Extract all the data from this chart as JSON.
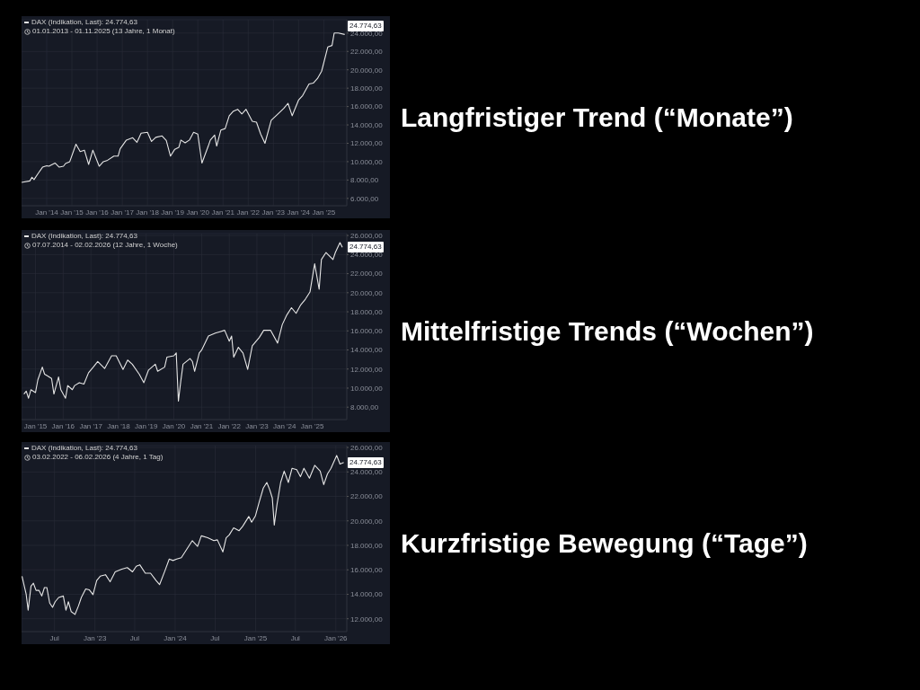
{
  "chart_data": [
    {
      "type": "line",
      "subtitle": "01.01.2013 - 01.11.2025 (13 Jahre, 1 Monat)",
      "legend": "top left",
      "grid": true,
      "x": [
        "2013-01",
        "2013-05",
        "2013-06",
        "2013-07",
        "2013-09",
        "2013-11",
        "2014-01",
        "2014-02",
        "2014-05",
        "2014-07",
        "2014-09",
        "2014-10",
        "2014-12",
        "2015-03",
        "2015-05",
        "2015-07",
        "2015-09",
        "2015-11",
        "2016-02",
        "2016-04",
        "2016-06",
        "2016-09",
        "2016-11",
        "2016-12",
        "2017-03",
        "2017-06",
        "2017-08",
        "2017-10",
        "2018-01",
        "2018-03",
        "2018-05",
        "2018-08",
        "2018-10",
        "2018-12",
        "2019-02",
        "2019-04",
        "2019-05",
        "2019-07",
        "2019-09",
        "2019-11",
        "2020-01",
        "2020-03",
        "2020-06",
        "2020-07",
        "2020-09",
        "2020-10",
        "2020-12",
        "2021-02",
        "2021-04",
        "2021-06",
        "2021-08",
        "2021-10",
        "2021-12",
        "2022-03",
        "2022-05",
        "2022-07",
        "2022-09",
        "2022-12",
        "2023-03",
        "2023-06",
        "2023-08",
        "2023-10",
        "2024-01",
        "2024-03",
        "2024-06",
        "2024-08",
        "2024-10",
        "2024-12",
        "2025-03",
        "2025-05",
        "2025-06",
        "2025-08",
        "2025-11"
      ],
      "series": [
        {
          "name": "DAX (Indikation, Last): 24.774,63",
          "color": "#e6e6e6",
          "values": [
            7750,
            7900,
            8300,
            8050,
            8750,
            9400,
            9550,
            9500,
            9850,
            9400,
            9500,
            9800,
            10000,
            11900,
            11100,
            11250,
            9700,
            11250,
            9500,
            10000,
            10150,
            10600,
            10600,
            11400,
            12350,
            12600,
            12100,
            13100,
            13200,
            12200,
            12650,
            12800,
            12300,
            10600,
            11350,
            11550,
            12350,
            12050,
            12350,
            13200,
            13000,
            9850,
            11700,
            12350,
            12900,
            11700,
            13450,
            13600,
            15000,
            15500,
            15700,
            15200,
            15700,
            14400,
            14300,
            13000,
            12000,
            14500,
            15150,
            15800,
            16350,
            15000,
            16700,
            17200,
            18450,
            18550,
            19050,
            19850,
            22500,
            22650,
            24000,
            24000,
            23850
          ]
        }
      ],
      "xlim": [
        "2013-01-01",
        "2025-12-01"
      ],
      "xticks": [
        {
          "value": "2014-01",
          "label": "Jan '14"
        },
        {
          "value": "2015-01",
          "label": "Jan '15"
        },
        {
          "value": "2016-01",
          "label": "Jan '16"
        },
        {
          "value": "2017-01",
          "label": "Jan '17"
        },
        {
          "value": "2018-01",
          "label": "Jan '18"
        },
        {
          "value": "2019-01",
          "label": "Jan '19"
        },
        {
          "value": "2020-01",
          "label": "Jan '20"
        },
        {
          "value": "2021-01",
          "label": "Jan '21"
        },
        {
          "value": "2022-01",
          "label": "Jan '22"
        },
        {
          "value": "2023-01",
          "label": "Jan '23"
        },
        {
          "value": "2024-01",
          "label": "Jan '24"
        },
        {
          "value": "2025-01",
          "label": "Jan '25"
        }
      ],
      "ylim": [
        5200,
        25450
      ],
      "yticks": [
        {
          "value": 6000,
          "label": "6.000,00"
        },
        {
          "value": 8000,
          "label": "8.000,00"
        },
        {
          "value": 10000,
          "label": "10.000,00"
        },
        {
          "value": 12000,
          "label": "12.000,00"
        },
        {
          "value": 14000,
          "label": "14.000,00"
        },
        {
          "value": 16000,
          "label": "16.000,00"
        },
        {
          "value": 18000,
          "label": "18.000,00"
        },
        {
          "value": 20000,
          "label": "20.000,00"
        },
        {
          "value": 22000,
          "label": "22.000,00"
        },
        {
          "value": 24000,
          "label": "24.000,00"
        }
      ],
      "annotations": [
        {
          "text": "24.774,63",
          "y": 24774.63
        }
      ]
    },
    {
      "type": "line",
      "subtitle": "07.07.2014 - 02.02.2026 (12 Jahre, 1 Woche)",
      "legend": "top left",
      "grid": true,
      "x": [
        "2014-08",
        "2014-09",
        "2014-10",
        "2014-11",
        "2015-01",
        "2015-02",
        "2015-04",
        "2015-05",
        "2015-06",
        "2015-08",
        "2015-09",
        "2015-11",
        "2015-12",
        "2016-02",
        "2016-03",
        "2016-05",
        "2016-06",
        "2016-08",
        "2016-10",
        "2016-12",
        "2017-02",
        "2017-04",
        "2017-07",
        "2017-10",
        "2017-12",
        "2018-03",
        "2018-05",
        "2018-07",
        "2018-10",
        "2018-12",
        "2019-02",
        "2019-05",
        "2019-06",
        "2019-09",
        "2019-10",
        "2020-01",
        "2020-02",
        "2020-03",
        "2020-04",
        "2020-05",
        "2020-08",
        "2020-09",
        "2020-10",
        "2020-12",
        "2021-01",
        "2021-04",
        "2021-07",
        "2021-09",
        "2021-11",
        "2022-01",
        "2022-02",
        "2022-03",
        "2022-05",
        "2022-07",
        "2022-09",
        "2022-11",
        "2023-02",
        "2023-04",
        "2023-07",
        "2023-10",
        "2023-12",
        "2024-02",
        "2024-04",
        "2024-06",
        "2024-08",
        "2024-10",
        "2024-12",
        "2025-02",
        "2025-04",
        "2025-05",
        "2025-07",
        "2025-10",
        "2025-11",
        "2026-01",
        "2026-02"
      ],
      "series": [
        {
          "name": "DAX (Indikation, Last): 24.774,63",
          "color": "#e6e6e6",
          "values": [
            9380,
            9680,
            8940,
            9830,
            9530,
            10870,
            12200,
            11460,
            11310,
            11010,
            9380,
            11160,
            9830,
            8940,
            10270,
            9830,
            10270,
            10570,
            10420,
            11610,
            12200,
            12790,
            12050,
            13390,
            13390,
            11960,
            12940,
            12500,
            11460,
            10570,
            11900,
            12500,
            11760,
            12200,
            13240,
            13390,
            13690,
            8640,
            10720,
            12500,
            13090,
            12800,
            11760,
            13690,
            13980,
            15460,
            15760,
            15910,
            16060,
            14920,
            15460,
            13240,
            14280,
            13690,
            11960,
            14430,
            15310,
            16060,
            16060,
            14720,
            16650,
            17690,
            18430,
            17840,
            18730,
            19320,
            20070,
            23030,
            20360,
            23480,
            24220,
            23480,
            24220,
            25260,
            24775
          ]
        }
      ],
      "xlim": [
        "2014-07-01",
        "2026-04-01"
      ],
      "xticks": [
        {
          "value": "2015-01",
          "label": "Jan '15"
        },
        {
          "value": "2016-01",
          "label": "Jan '16"
        },
        {
          "value": "2017-01",
          "label": "Jan '17"
        },
        {
          "value": "2018-01",
          "label": "Jan '18"
        },
        {
          "value": "2019-01",
          "label": "Jan '19"
        },
        {
          "value": "2020-01",
          "label": "Jan '20"
        },
        {
          "value": "2021-01",
          "label": "Jan '21"
        },
        {
          "value": "2022-01",
          "label": "Jan '22"
        },
        {
          "value": "2023-01",
          "label": "Jan '23"
        },
        {
          "value": "2024-01",
          "label": "Jan '24"
        },
        {
          "value": "2025-01",
          "label": "Jan '25"
        }
      ],
      "ylim": [
        6700,
        26200
      ],
      "yticks": [
        {
          "value": 8000,
          "label": "8.000,00"
        },
        {
          "value": 10000,
          "label": "10.000,00"
        },
        {
          "value": 12000,
          "label": "12.000,00"
        },
        {
          "value": 14000,
          "label": "14.000,00"
        },
        {
          "value": 16000,
          "label": "16.000,00"
        },
        {
          "value": 18000,
          "label": "18.000,00"
        },
        {
          "value": 20000,
          "label": "20.000,00"
        },
        {
          "value": 22000,
          "label": "22.000,00"
        },
        {
          "value": 24000,
          "label": "24.000,00"
        },
        {
          "value": 26000,
          "label": "26.000,00"
        }
      ],
      "annotations": [
        {
          "text": "24.774,63",
          "y": 24774.63
        }
      ]
    },
    {
      "type": "line",
      "subtitle": "03.02.2022 - 06.02.2026 (4 Jahre, 1 Tag)",
      "legend": "top left",
      "grid": true,
      "x": [
        "2022-02-03",
        "2022-02-22",
        "2022-03-03",
        "2022-03-16",
        "2022-03-27",
        "2022-04-08",
        "2022-04-21",
        "2022-05-04",
        "2022-05-16",
        "2022-05-27",
        "2022-06-09",
        "2022-06-22",
        "2022-07-04",
        "2022-07-20",
        "2022-08-10",
        "2022-08-22",
        "2022-09-02",
        "2022-09-15",
        "2022-10-02",
        "2022-10-18",
        "2022-10-31",
        "2022-11-20",
        "2022-12-06",
        "2022-12-23",
        "2023-01-09",
        "2023-01-25",
        "2023-02-18",
        "2023-03-11",
        "2023-04-03",
        "2023-05-03",
        "2023-05-28",
        "2023-06-21",
        "2023-07-08",
        "2023-07-24",
        "2023-08-18",
        "2023-09-11",
        "2023-10-06",
        "2023-10-22",
        "2023-11-16",
        "2023-12-05",
        "2023-12-22",
        "2024-01-08",
        "2024-01-29",
        "2024-02-23",
        "2024-03-19",
        "2024-04-12",
        "2024-04-29",
        "2024-05-28",
        "2024-06-25",
        "2024-07-11",
        "2024-08-05",
        "2024-08-20",
        "2024-09-03",
        "2024-09-23",
        "2024-10-18",
        "2024-11-03",
        "2024-12-01",
        "2024-12-14",
        "2024-12-31",
        "2025-01-17",
        "2025-02-05",
        "2025-02-21",
        "2025-03-06",
        "2025-03-18",
        "2025-03-27",
        "2025-04-08",
        "2025-04-25",
        "2025-05-11",
        "2025-05-30",
        "2025-06-16",
        "2025-07-07",
        "2025-07-24",
        "2025-08-09",
        "2025-09-03",
        "2025-09-27",
        "2025-10-22",
        "2025-11-07",
        "2025-11-24",
        "2025-12-10",
        "2026-01-05",
        "2026-01-20",
        "2026-02-06"
      ],
      "series": [
        {
          "name": "DAX (Indikation, Last): 24.774,63",
          "color": "#e6e6e6",
          "values": [
            15480,
            14000,
            12700,
            14670,
            14900,
            14320,
            14320,
            13860,
            14550,
            14550,
            13280,
            12930,
            13390,
            13740,
            13860,
            12700,
            13390,
            12580,
            12350,
            13050,
            13740,
            14440,
            14370,
            13970,
            15130,
            15480,
            15600,
            15020,
            15830,
            16060,
            16180,
            15830,
            16290,
            16410,
            15720,
            15720,
            15130,
            14790,
            15950,
            16880,
            16760,
            16880,
            16990,
            17690,
            18380,
            17920,
            18780,
            18620,
            18380,
            18450,
            17460,
            18620,
            18850,
            19430,
            19200,
            19550,
            20360,
            19890,
            20400,
            21520,
            22680,
            23140,
            22560,
            21870,
            19660,
            21290,
            23140,
            24070,
            23140,
            24300,
            24190,
            23610,
            24300,
            23490,
            24540,
            24070,
            22960,
            23840,
            24300,
            25350,
            24650,
            24775
          ]
        }
      ],
      "xlim": [
        "2022-02-01",
        "2026-02-20"
      ],
      "xticks": [
        {
          "value": "2022-07-01",
          "label": "Jul"
        },
        {
          "value": "2023-01-01",
          "label": "Jan '23"
        },
        {
          "value": "2023-07-01",
          "label": "Jul"
        },
        {
          "value": "2024-01-01",
          "label": "Jan '24"
        },
        {
          "value": "2024-07-01",
          "label": "Jul"
        },
        {
          "value": "2025-01-01",
          "label": "Jan '25"
        },
        {
          "value": "2025-07-01",
          "label": "Jul"
        },
        {
          "value": "2026-01-01",
          "label": "Jan '26"
        }
      ],
      "ylim": [
        10950,
        26150
      ],
      "yticks": [
        {
          "value": 12000,
          "label": "12.000,00"
        },
        {
          "value": 14000,
          "label": "14.000,00"
        },
        {
          "value": 16000,
          "label": "16.000,00"
        },
        {
          "value": 18000,
          "label": "18.000,00"
        },
        {
          "value": 20000,
          "label": "20.000,00"
        },
        {
          "value": 22000,
          "label": "22.000,00"
        },
        {
          "value": 24000,
          "label": "24.000,00"
        },
        {
          "value": 26000,
          "label": "26.000,00"
        }
      ],
      "annotations": [
        {
          "text": "24.774,63",
          "y": 24774.63
        }
      ]
    },
    {
      "type": "other",
      "annotations": [
        "Langfristiger Trend (“Monate”)",
        "Mittelfristige Trends (“Wochen”)",
        "Kurzfristige Bewegung (“Tage”)"
      ]
    }
  ]
}
